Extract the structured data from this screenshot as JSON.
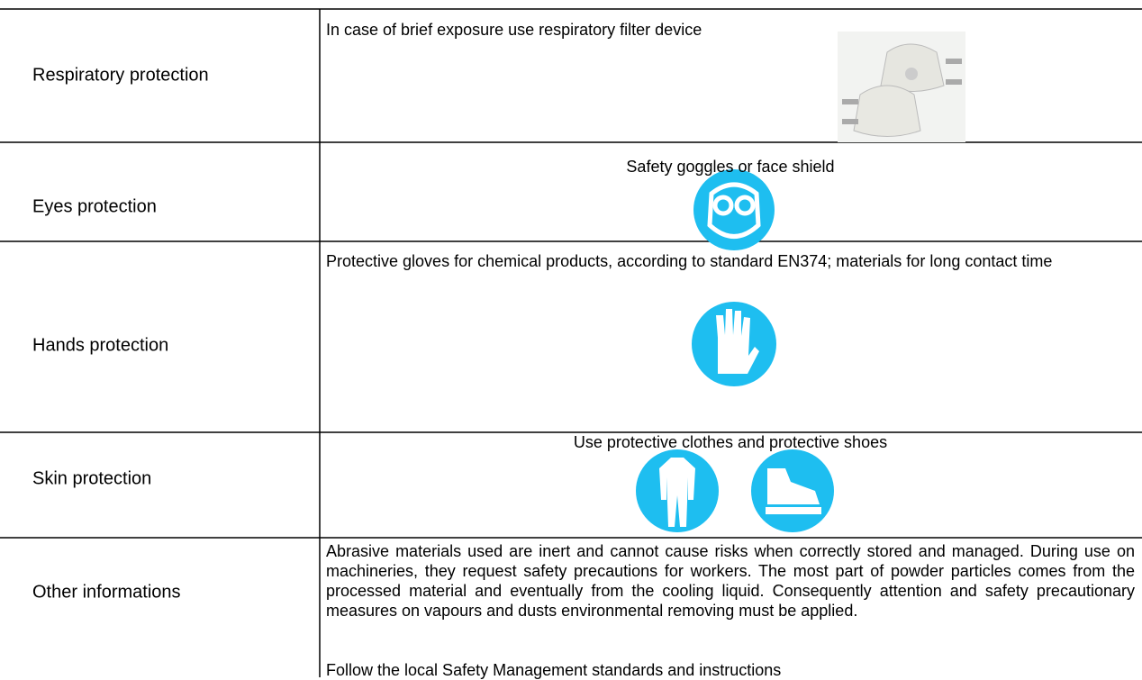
{
  "rows": [
    {
      "label": "Respiratory protection",
      "text": [
        "In case of brief exposure use respiratory filter device"
      ]
    },
    {
      "label": "Eyes protection",
      "text": [
        "Safety goggles or face shield"
      ]
    },
    {
      "label": "Hands protection",
      "text": [
        "Protective gloves for chemical products, according to standard EN374; materials for long contact time"
      ]
    },
    {
      "label": "Skin protection",
      "text": [
        "Use protective clothes and protective shoes"
      ]
    },
    {
      "label": "Other informations",
      "text": [
        "Abrasive materials used are inert and cannot cause risks when correctly stored and managed. During use on machineries, they request safety precautions for workers. The most part of powder particles comes from the processed material and eventually from the cooling liquid. Consequently attention and safety precautionary measures on vapours and dusts environmental removing must be applied.",
        "Follow the local Safety Management standards and instructions"
      ]
    }
  ]
}
